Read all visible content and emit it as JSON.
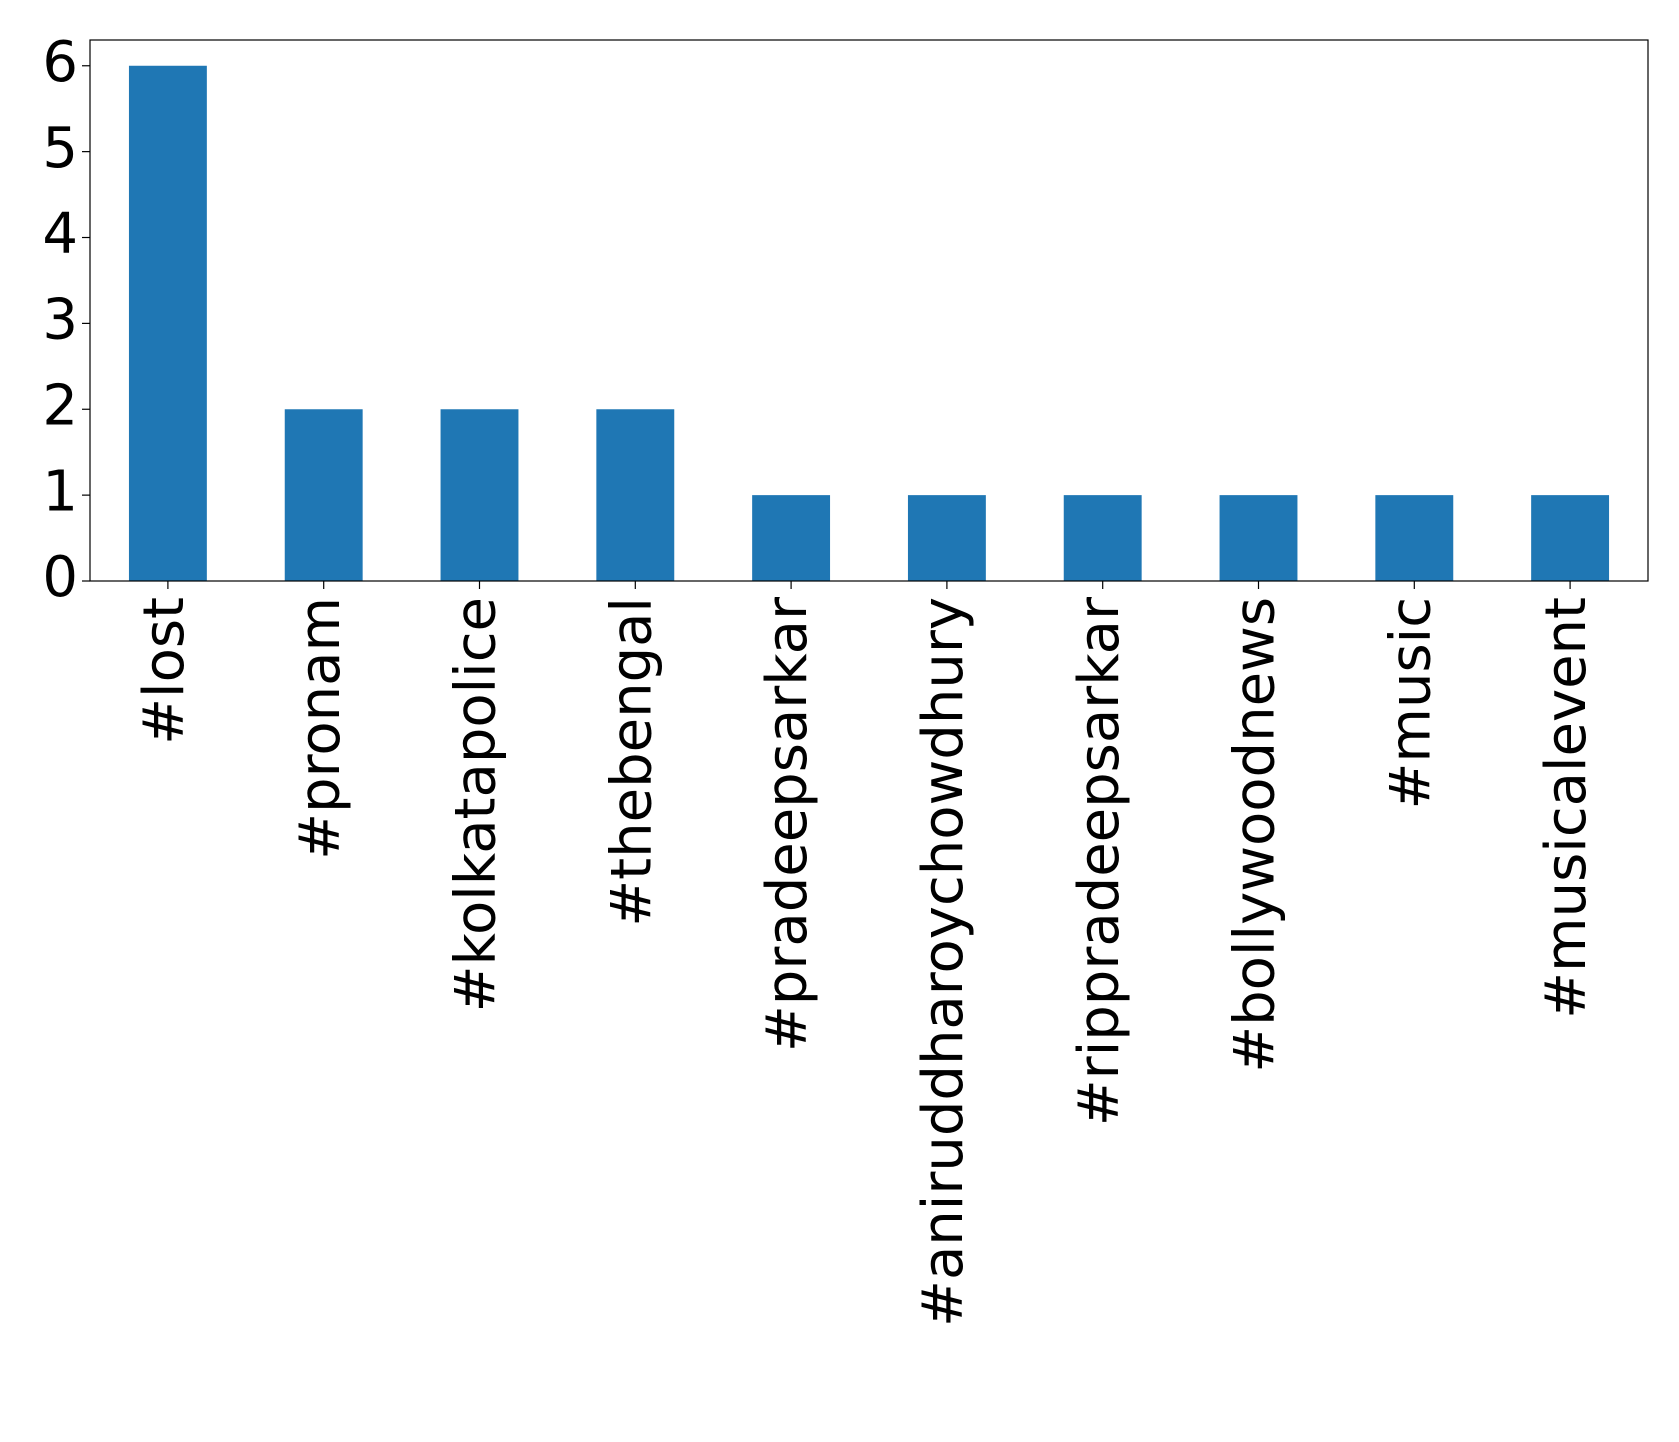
{
  "chart_data": {
    "type": "bar",
    "categories": [
      "#lost",
      "#pronam",
      "#kolkatapolice",
      "#thebengal",
      "#pradeepsarkar",
      "#aniruddharoychowdhury",
      "#rippradeepsarkar",
      "#bollywoodnews",
      "#music",
      "#musicalevent"
    ],
    "values": [
      6,
      2,
      2,
      2,
      1,
      1,
      1,
      1,
      1,
      1
    ],
    "color": "#1f77b4",
    "ylim": [
      0,
      6.3
    ],
    "yticks": [
      0,
      1,
      2,
      3,
      4,
      5,
      6
    ],
    "grid": false
  }
}
